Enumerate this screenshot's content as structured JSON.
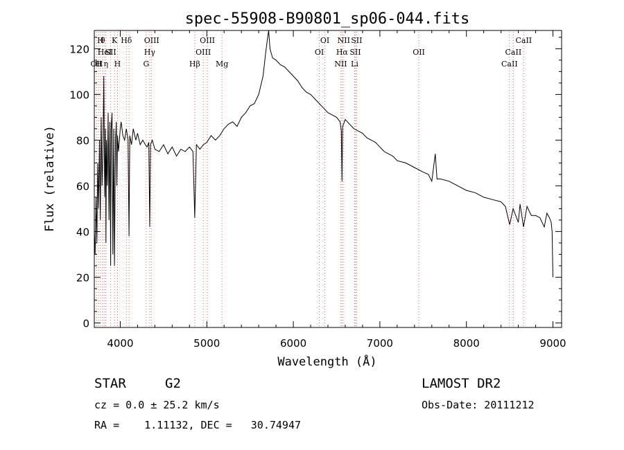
{
  "chart_data": {
    "type": "line",
    "title": "spec-55908-B90801_sp06-044.fits",
    "xlabel": "Wavelength (Å)",
    "ylabel": "Flux (relative)",
    "xlim": [
      3700,
      9100
    ],
    "ylim": [
      -2,
      128
    ],
    "xticks": [
      4000,
      5000,
      6000,
      7000,
      8000,
      9000
    ],
    "yticks": [
      0,
      20,
      40,
      60,
      80,
      100,
      120
    ],
    "grid": false,
    "line_color": "#000000",
    "marker_color": "#e06060",
    "series": [
      {
        "x": [
          3700,
          3710,
          3720,
          3730,
          3740,
          3750,
          3760,
          3770,
          3780,
          3790,
          3800,
          3810,
          3820,
          3830,
          3835,
          3840,
          3850,
          3860,
          3870,
          3880,
          3889,
          3895,
          3905,
          3915,
          3925,
          3933,
          3945,
          3955,
          3960,
          3968,
          3980,
          3990,
          4000,
          4010,
          4030,
          4050,
          4070,
          4090,
          4101,
          4110,
          4130,
          4150,
          4180,
          4200,
          4230,
          4260,
          4290,
          4310,
          4330,
          4341,
          4350,
          4370,
          4400,
          4450,
          4500,
          4550,
          4600,
          4650,
          4700,
          4750,
          4800,
          4840,
          4861,
          4880,
          4920,
          4960,
          5000,
          5050,
          5100,
          5150,
          5200,
          5250,
          5300,
          5350,
          5400,
          5450,
          5500,
          5550,
          5600,
          5650,
          5680,
          5700,
          5715,
          5730,
          5760,
          5800,
          5850,
          5900,
          5950,
          6000,
          6050,
          6100,
          6150,
          6200,
          6250,
          6300,
          6350,
          6400,
          6450,
          6500,
          6540,
          6555,
          6563,
          6570,
          6600,
          6650,
          6700,
          6750,
          6800,
          6850,
          6900,
          6950,
          7000,
          7050,
          7100,
          7150,
          7200,
          7300,
          7400,
          7500,
          7560,
          7600,
          7620,
          7640,
          7660,
          7700,
          7800,
          7900,
          8000,
          8100,
          8200,
          8300,
          8400,
          8450,
          8500,
          8540,
          8560,
          8600,
          8620,
          8660,
          8700,
          8750,
          8800,
          8850,
          8900,
          8930,
          8960,
          8980,
          8990,
          9000
        ],
        "values": [
          40,
          30,
          55,
          35,
          70,
          50,
          80,
          45,
          90,
          60,
          75,
          108,
          55,
          85,
          35,
          80,
          60,
          92,
          45,
          88,
          25,
          85,
          92,
          30,
          85,
          25,
          80,
          88,
          60,
          82,
          75,
          80,
          85,
          88,
          82,
          80,
          85,
          80,
          38,
          82,
          78,
          85,
          80,
          83,
          78,
          80,
          78,
          77,
          79,
          42,
          78,
          80,
          76,
          75,
          78,
          74,
          77,
          73,
          76,
          75,
          77,
          75,
          46,
          78,
          76,
          78,
          79,
          82,
          80,
          82,
          85,
          87,
          88,
          86,
          90,
          92,
          95,
          96,
          100,
          108,
          118,
          124,
          128,
          120,
          116,
          115,
          113,
          112,
          110,
          108,
          106,
          103,
          101,
          100,
          98,
          96,
          94,
          92,
          91,
          90,
          88,
          84,
          62,
          86,
          89,
          87,
          85,
          84,
          83,
          81,
          80,
          79,
          77,
          75,
          74,
          73,
          71,
          70,
          68,
          66,
          65,
          62,
          68,
          74,
          63,
          63,
          62,
          60,
          58,
          57,
          55,
          54,
          53,
          51,
          43,
          50,
          48,
          44,
          52,
          42,
          51,
          47,
          47,
          46,
          42,
          48,
          46,
          44,
          40,
          20
        ]
      }
    ],
    "line_markers": [
      {
        "x": 3727,
        "rows": [
          {
            "label": "OII",
            "row": 3
          }
        ]
      },
      {
        "x": 3750,
        "rows": [
          {
            "label": "H",
            "row": 3
          }
        ]
      },
      {
        "x": 3771,
        "rows": [
          {
            "label": "H",
            "row": 1
          }
        ]
      },
      {
        "x": 3798,
        "rows": [
          {
            "label": "θ",
            "row": 1
          }
        ]
      },
      {
        "x": 3820,
        "rows": [
          {
            "label": "HeI",
            "row": 2
          }
        ]
      },
      {
        "x": 3835,
        "rows": [
          {
            "label": "η",
            "row": 3
          }
        ]
      },
      {
        "x": 3889,
        "rows": [
          {
            "label": "SII",
            "row": 2
          }
        ]
      },
      {
        "x": 3933,
        "rows": [
          {
            "label": "K",
            "row": 1
          }
        ]
      },
      {
        "x": 3968,
        "rows": [
          {
            "label": "H",
            "row": 3
          }
        ]
      },
      {
        "x": 4071,
        "rows": [
          {
            "label": "Hδ",
            "row": 1
          }
        ]
      },
      {
        "x": 4102,
        "rows": []
      },
      {
        "x": 4300,
        "rows": [
          {
            "label": "G",
            "row": 3
          }
        ]
      },
      {
        "x": 4340,
        "rows": [
          {
            "label": "Hγ",
            "row": 2
          }
        ]
      },
      {
        "x": 4363,
        "rows": [
          {
            "label": "OIII",
            "row": 1
          }
        ]
      },
      {
        "x": 4861,
        "rows": [
          {
            "label": "Hβ",
            "row": 3
          }
        ]
      },
      {
        "x": 4959,
        "rows": [
          {
            "label": "OIII",
            "row": 2
          }
        ]
      },
      {
        "x": 5007,
        "rows": [
          {
            "label": "OIII",
            "row": 1
          }
        ]
      },
      {
        "x": 5175,
        "rows": [
          {
            "label": "Mg",
            "row": 3
          }
        ]
      },
      {
        "x": 6300,
        "rows": [
          {
            "label": "OI",
            "row": 2
          }
        ]
      },
      {
        "x": 6364,
        "rows": [
          {
            "label": "OI",
            "row": 1
          }
        ]
      },
      {
        "x": 6548,
        "rows": [
          {
            "label": "NII",
            "row": 3
          }
        ]
      },
      {
        "x": 6563,
        "rows": [
          {
            "label": "Hα",
            "row": 2
          }
        ]
      },
      {
        "x": 6583,
        "rows": [
          {
            "label": "NII",
            "row": 1
          }
        ]
      },
      {
        "x": 6708,
        "rows": [
          {
            "label": "Li",
            "row": 3
          }
        ]
      },
      {
        "x": 6716,
        "rows": [
          {
            "label": "SII",
            "row": 2
          }
        ]
      },
      {
        "x": 6731,
        "rows": [
          {
            "label": "SII",
            "row": 1
          }
        ]
      },
      {
        "x": 7450,
        "rows": [
          {
            "label": "OII",
            "row": 2
          }
        ]
      },
      {
        "x": 8498,
        "rows": [
          {
            "label": "CaII",
            "row": 3
          }
        ]
      },
      {
        "x": 8542,
        "rows": [
          {
            "label": "CaII",
            "row": 2
          }
        ]
      },
      {
        "x": 8662,
        "rows": [
          {
            "label": "CaII",
            "row": 1
          }
        ]
      }
    ]
  },
  "info": {
    "object_class": "STAR",
    "subclass": "G2",
    "survey": "LAMOST DR2",
    "redshift": "cz = 0.0 ± 25.2 km/s",
    "obs_date": "Obs-Date: 20111212",
    "coords": "RA =    1.11132, DEC =   30.74947"
  }
}
